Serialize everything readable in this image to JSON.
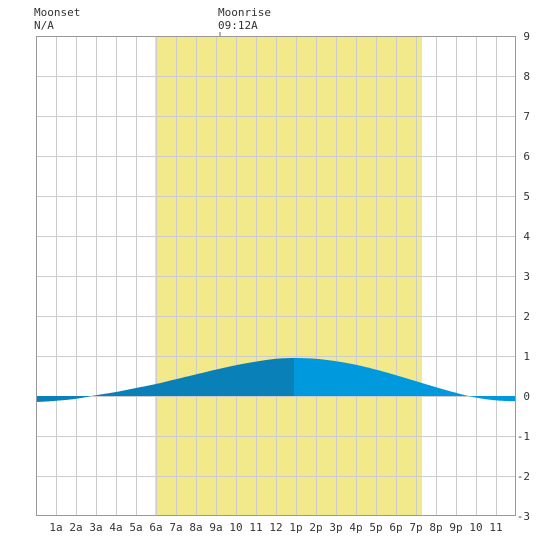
{
  "header": {
    "moonset_label": "Moonset",
    "moonset_value": "N/A",
    "moonrise_label": "Moonrise",
    "moonrise_value": "09:12A"
  },
  "colors": {
    "daylight": "#f2e98a",
    "tide_before_peak": "#0a80b8",
    "tide_after_peak": "#0099dd",
    "grid": "#cccccc",
    "plot_border": "#999999"
  },
  "chart_data": {
    "type": "area",
    "title": "",
    "xlabel": "",
    "ylabel": "",
    "x_ticks": [
      "1a",
      "2a",
      "3a",
      "4a",
      "5a",
      "6a",
      "7a",
      "8a",
      "9a",
      "10",
      "11",
      "12",
      "1p",
      "2p",
      "3p",
      "4p",
      "5p",
      "6p",
      "7p",
      "8p",
      "9p",
      "10",
      "11"
    ],
    "y_ticks": [
      "9",
      "8",
      "7",
      "6",
      "5",
      "4",
      "3",
      "2",
      "1",
      "0",
      "-1",
      "-2",
      "-3"
    ],
    "xlim": [
      0,
      24
    ],
    "ylim": [
      -3,
      9
    ],
    "grid": true,
    "daylight_hours": [
      5.95,
      19.3
    ],
    "moonrise_hour": 9.2,
    "peak_hour": 12.9,
    "series": [
      {
        "x": [
          0,
          1,
          2,
          3,
          4,
          5,
          6,
          7,
          8,
          9,
          10,
          11,
          12,
          12.9,
          13,
          14,
          15,
          16,
          17,
          18,
          19,
          20,
          21,
          22,
          23,
          24
        ],
        "y": [
          -0.15,
          -0.12,
          -0.07,
          0.02,
          0.1,
          0.2,
          0.3,
          0.42,
          0.54,
          0.66,
          0.77,
          0.86,
          0.93,
          0.95,
          0.95,
          0.93,
          0.87,
          0.78,
          0.66,
          0.52,
          0.37,
          0.22,
          0.08,
          -0.04,
          -0.11,
          -0.13
        ]
      }
    ]
  }
}
